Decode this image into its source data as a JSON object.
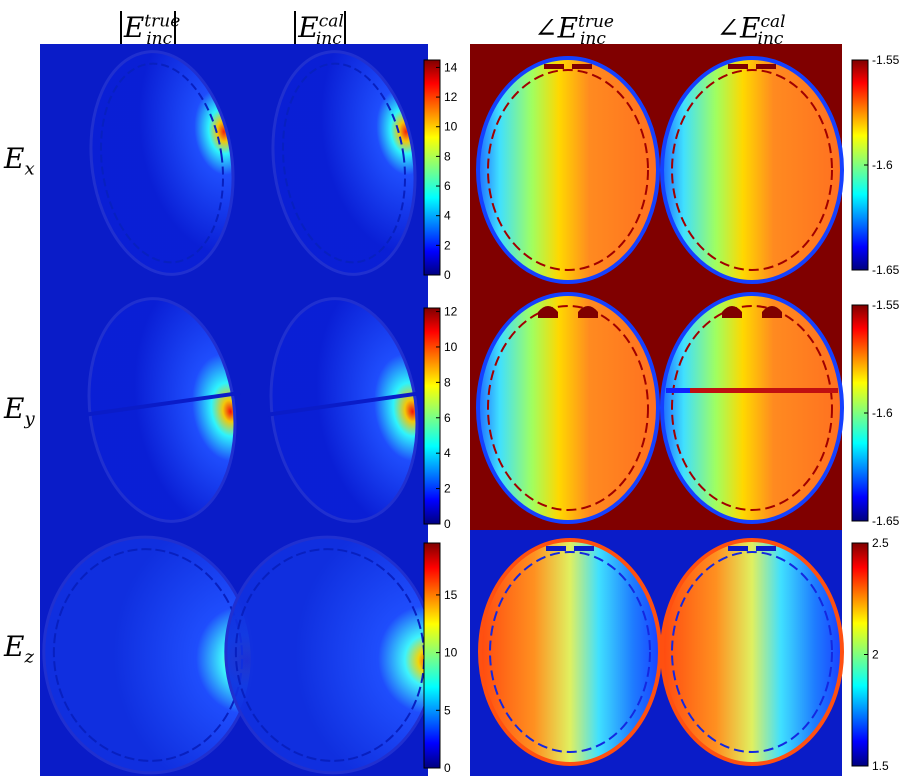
{
  "column_headers": [
    {
      "prefix": "|",
      "base": "E",
      "sup": "true",
      "sub": "inc",
      "suffix": "|"
    },
    {
      "prefix": "|",
      "base": "E",
      "sup": "cal",
      "sub": "inc",
      "suffix": "|"
    },
    {
      "prefix": "∠",
      "base": "E",
      "sup": "true",
      "sub": "inc",
      "suffix": ""
    },
    {
      "prefix": "∠",
      "base": "E",
      "sup": "cal",
      "sub": "inc",
      "suffix": ""
    }
  ],
  "row_labels": [
    {
      "base": "E",
      "sub": "x"
    },
    {
      "base": "E",
      "sub": "y"
    },
    {
      "base": "E",
      "sub": "z"
    }
  ],
  "chart_data": {
    "type": "heatmap",
    "colormap": "jet",
    "panels": [
      {
        "row": "x",
        "quantity": "magnitude",
        "colorbar": {
          "ticks": [
            0,
            2,
            4,
            6,
            8,
            10,
            12,
            14
          ],
          "range": [
            0,
            14.5
          ]
        }
      },
      {
        "row": "y",
        "quantity": "magnitude",
        "colorbar": {
          "ticks": [
            0,
            2,
            4,
            6,
            8,
            10,
            12
          ],
          "range": [
            0,
            12.2
          ]
        }
      },
      {
        "row": "z",
        "quantity": "magnitude",
        "colorbar": {
          "ticks": [
            0,
            5,
            10,
            15
          ],
          "range": [
            0,
            19.5
          ]
        }
      },
      {
        "row": "x",
        "quantity": "phase",
        "colorbar": {
          "ticks": [
            -1.65,
            -1.6,
            -1.55
          ],
          "labels": [
            "-1.65",
            "-1.6",
            "-1.55"
          ],
          "range": [
            -1.65,
            -1.55
          ]
        }
      },
      {
        "row": "y",
        "quantity": "phase",
        "colorbar": {
          "ticks": [
            -1.65,
            -1.6,
            -1.55
          ],
          "labels": [
            "-1.65",
            "-1.6",
            "-1.55"
          ],
          "range": [
            -1.65,
            -1.55
          ]
        }
      },
      {
        "row": "z",
        "quantity": "phase",
        "colorbar": {
          "ticks": [
            1.5,
            2,
            2.5
          ],
          "labels": [
            "1.5",
            "2",
            "2.5"
          ],
          "range": [
            1.5,
            2.5
          ]
        }
      }
    ]
  }
}
